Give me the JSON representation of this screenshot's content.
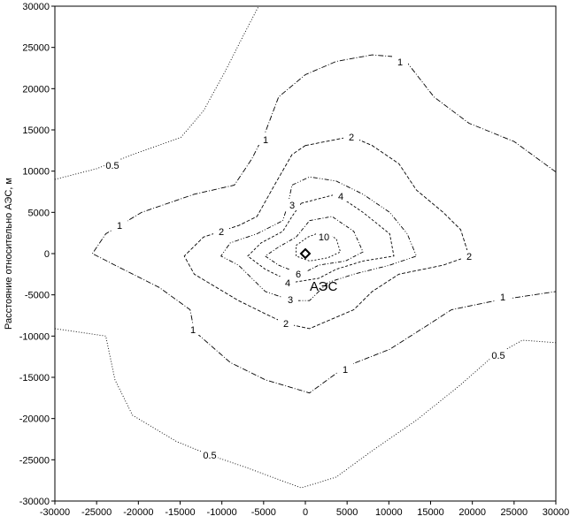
{
  "chart_data": {
    "type": "contour",
    "y_label": "Расстояние относительно АЭС, м",
    "annotation": "АЭС",
    "xlim": [
      -30000,
      30000
    ],
    "ylim": [
      -30000,
      30000
    ],
    "xticks": [
      -30000,
      -25000,
      -20000,
      -15000,
      -10000,
      -5000,
      0,
      5000,
      10000,
      15000,
      20000,
      25000,
      30000
    ],
    "yticks": [
      -30000,
      -25000,
      -20000,
      -15000,
      -10000,
      -5000,
      0,
      5000,
      10000,
      15000,
      20000,
      25000,
      30000
    ],
    "color": "#000000",
    "contours": [
      {
        "level": 0.5,
        "closed": false,
        "x": [
          -30000,
          -25000,
          -20700,
          -14900,
          -12200,
          -9550,
          -7400,
          -5600
        ],
        "y": [
          9000,
          10300,
          12000,
          14100,
          17300,
          22200,
          26500,
          30000
        ]
      },
      {
        "level": 0.5,
        "closed": false,
        "x": [
          -30000,
          -23900,
          -22800,
          -20700,
          -15400,
          -11500,
          -6900,
          -500,
          3700,
          8000,
          13300,
          18600,
          22300,
          26000,
          30000
        ],
        "y": [
          -9100,
          -10000,
          -15300,
          -19600,
          -22800,
          -24400,
          -26000,
          -28400,
          -27100,
          -23900,
          -20200,
          -15900,
          -12600,
          -10500,
          -10800
        ]
      },
      {
        "level": 1,
        "closed": false,
        "x": [
          30000,
          25000,
          19600,
          15400,
          11700,
          8000,
          3700,
          0,
          -3200,
          -4800,
          -6400,
          -8500,
          -13300,
          -19600,
          -23900,
          -25500,
          -22800,
          -17500,
          -13800,
          -13300,
          -9000,
          -4800,
          500,
          4800,
          10100,
          14300,
          17500,
          22800,
          30000
        ],
        "y": [
          9900,
          13600,
          15800,
          19000,
          23800,
          24100,
          23300,
          21700,
          19000,
          14700,
          11500,
          8300,
          7200,
          5000,
          2400,
          0,
          -1400,
          -4100,
          -6800,
          -9400,
          -13200,
          -15300,
          -16900,
          -13700,
          -11600,
          -8900,
          -6800,
          -5700,
          -4600
        ]
      },
      {
        "level": 2,
        "closed": true,
        "x": [
          0,
          5500,
          8000,
          11200,
          13300,
          16500,
          18600,
          19600,
          16500,
          11200,
          8000,
          5800,
          500,
          -2300,
          -4800,
          -8000,
          -13300,
          -14500,
          -12200,
          -8000,
          -5800,
          -3700,
          -1600
        ],
        "y": [
          13100,
          14200,
          13100,
          10900,
          7700,
          5000,
          2900,
          -300,
          -1400,
          -2500,
          -4600,
          -6800,
          -9100,
          -8500,
          -7300,
          -5700,
          -2500,
          -300,
          2000,
          3400,
          4500,
          8300,
          12000
        ]
      },
      {
        "level": 3,
        "closed": true,
        "x": [
          -1600,
          500,
          3700,
          6900,
          10100,
          12200,
          13300,
          10100,
          5800,
          2700,
          500,
          -1600,
          -4800,
          -8000,
          -10100,
          -9000,
          -5800,
          -2700,
          -2100
        ],
        "y": [
          8300,
          9300,
          8800,
          7200,
          5000,
          2400,
          -300,
          -1400,
          -2500,
          -3500,
          -5700,
          -5700,
          -4600,
          -1400,
          -300,
          1300,
          2400,
          4000,
          5900
        ]
      },
      {
        "level": 4,
        "closed": true,
        "x": [
          -500,
          3700,
          6900,
          10100,
          10600,
          6900,
          3700,
          1600,
          -1600,
          -4800,
          -6900,
          -5300,
          -2700,
          -1600
        ],
        "y": [
          6100,
          7200,
          5000,
          2400,
          -300,
          -900,
          -1900,
          -3000,
          -3500,
          -1900,
          -300,
          1300,
          2700,
          4500
        ]
      },
      {
        "level": 6,
        "closed": true,
        "x": [
          500,
          3200,
          5800,
          6900,
          4800,
          1600,
          -500,
          -3200,
          -4800,
          -3200,
          -1100
        ],
        "y": [
          4000,
          4500,
          2700,
          200,
          -900,
          -1400,
          -2500,
          -1400,
          -300,
          800,
          2000
        ]
      },
      {
        "level": 10,
        "closed": true,
        "x": [
          300,
          2100,
          3700,
          4200,
          2700,
          500,
          -1100,
          -1100
        ],
        "y": [
          2000,
          2700,
          1800,
          200,
          -500,
          -900,
          -300,
          1000
        ]
      }
    ]
  }
}
